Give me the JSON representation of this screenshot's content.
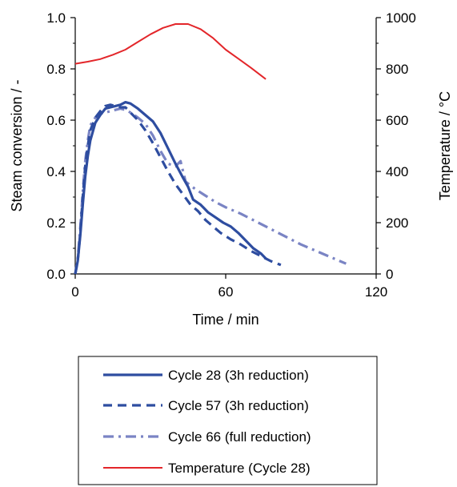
{
  "chart_data": {
    "type": "line",
    "title": "",
    "xlabel": "Time / min",
    "ylabel": "Steam conversion / -",
    "y2label": "Temperature / °C",
    "xlim": [
      0,
      120
    ],
    "ylim": [
      0,
      1.0
    ],
    "y2lim": [
      0,
      1000
    ],
    "x_ticks": [
      "0",
      "60",
      "120"
    ],
    "y_ticks": [
      "0.0",
      "0.2",
      "0.4",
      "0.6",
      "0.8",
      "1.0"
    ],
    "y2_ticks": [
      "0",
      "200",
      "400",
      "600",
      "800",
      "1000"
    ],
    "grid": false,
    "legend_position": "bottom",
    "series": [
      {
        "name": "Cycle 28 (3h reduction)",
        "axis": "left",
        "color": "#2e4da0",
        "style": "solid",
        "x": [
          0,
          1,
          2,
          3,
          4,
          5,
          6,
          8,
          10,
          12,
          14,
          16,
          18,
          20,
          22,
          25,
          28,
          31,
          34,
          37,
          40,
          43,
          45,
          47,
          50,
          53,
          56,
          59,
          62,
          65,
          68,
          71,
          74,
          76
        ],
        "y": [
          0.0,
          0.05,
          0.15,
          0.27,
          0.38,
          0.46,
          0.52,
          0.59,
          0.62,
          0.645,
          0.65,
          0.655,
          0.66,
          0.67,
          0.665,
          0.645,
          0.62,
          0.595,
          0.55,
          0.49,
          0.43,
          0.375,
          0.34,
          0.29,
          0.27,
          0.24,
          0.22,
          0.2,
          0.185,
          0.16,
          0.13,
          0.1,
          0.08,
          0.06
        ]
      },
      {
        "name": "Cycle 57 (3h reduction)",
        "axis": "left",
        "color": "#2e4da0",
        "style": "dashed",
        "x": [
          0,
          1,
          2,
          3,
          4,
          5,
          6,
          8,
          10,
          12,
          14,
          16,
          18,
          20,
          22,
          25,
          28,
          31,
          34,
          37,
          40,
          43,
          46,
          49,
          52,
          55,
          58,
          62,
          66,
          70,
          74,
          78,
          82
        ],
        "y": [
          0.0,
          0.05,
          0.16,
          0.3,
          0.42,
          0.5,
          0.56,
          0.61,
          0.635,
          0.655,
          0.66,
          0.655,
          0.65,
          0.65,
          0.63,
          0.6,
          0.56,
          0.51,
          0.455,
          0.4,
          0.35,
          0.31,
          0.27,
          0.245,
          0.21,
          0.185,
          0.16,
          0.135,
          0.115,
          0.09,
          0.07,
          0.05,
          0.035
        ]
      },
      {
        "name": "Cycle 66 (full reduction)",
        "axis": "left",
        "color": "#7a84c4",
        "style": "dashdot",
        "x": [
          0,
          1,
          2,
          3,
          4,
          5,
          6,
          8,
          10,
          12,
          14,
          16,
          18,
          20,
          22,
          25,
          28,
          31,
          34,
          37,
          40,
          42,
          44,
          48,
          52,
          56,
          60,
          66,
          72,
          78,
          84,
          90,
          96,
          102,
          108
        ],
        "y": [
          0.0,
          0.06,
          0.18,
          0.32,
          0.44,
          0.52,
          0.58,
          0.61,
          0.625,
          0.63,
          0.635,
          0.64,
          0.645,
          0.64,
          0.63,
          0.61,
          0.585,
          0.54,
          0.48,
          0.43,
          0.42,
          0.44,
          0.36,
          0.33,
          0.305,
          0.28,
          0.26,
          0.235,
          0.205,
          0.175,
          0.145,
          0.115,
          0.09,
          0.065,
          0.04
        ]
      },
      {
        "name": "Temperature (Cycle 28)",
        "axis": "right",
        "color": "#e3262a",
        "style": "solid",
        "x": [
          0,
          5,
          10,
          15,
          20,
          25,
          30,
          35,
          40,
          45,
          50,
          55,
          60,
          65,
          70,
          76
        ],
        "y": [
          820,
          828,
          838,
          855,
          875,
          905,
          935,
          960,
          975,
          975,
          955,
          920,
          875,
          840,
          805,
          760
        ]
      }
    ]
  }
}
